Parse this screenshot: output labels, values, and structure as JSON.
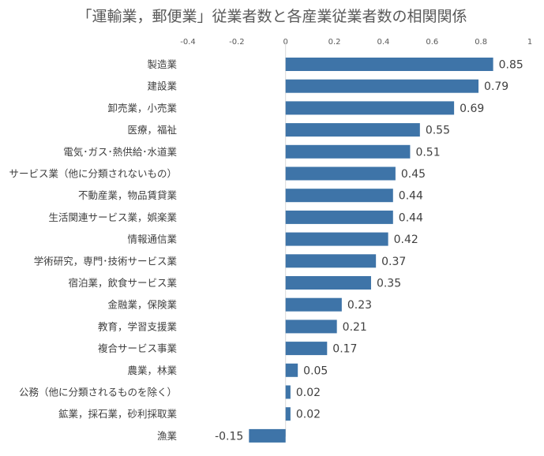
{
  "chart_data": {
    "type": "bar",
    "orientation": "horizontal",
    "title": "「運輸業，郵便業」従業者数と各産業従業者数の相関関係",
    "xlim": [
      -0.4,
      1
    ],
    "x_ticks": [
      "-0.4",
      "-0.2",
      "0",
      "0.2",
      "0.4",
      "0.6",
      "0.8",
      "1"
    ],
    "x_axis_position": "top",
    "grid": false,
    "legend": "none",
    "bar_color": "#3e74a8",
    "categories": [
      "製造業",
      "建設業",
      "卸売業，小売業",
      "医療，福祉",
      "電気･ガス･熱供給･水道業",
      "サービス業（他に分類されないもの）",
      "不動産業，物品賃貸業",
      "生活関連サービス業，娯楽業",
      "情報通信業",
      "学術研究，専門･技術サービス業",
      "宿泊業，飲食サービス業",
      "金融業，保険業",
      "教育，学習支援業",
      "複合サービス事業",
      "農業，林業",
      "公務（他に分類されるものを除く）",
      "鉱業，採石業，砂利採取業",
      "漁業"
    ],
    "values": [
      0.85,
      0.79,
      0.69,
      0.55,
      0.51,
      0.45,
      0.44,
      0.44,
      0.42,
      0.37,
      0.35,
      0.23,
      0.21,
      0.17,
      0.05,
      0.02,
      0.02,
      -0.15
    ],
    "value_labels": [
      "0.85",
      "0.79",
      "0.69",
      "0.55",
      "0.51",
      "0.45",
      "0.44",
      "0.44",
      "0.42",
      "0.37",
      "0.35",
      "0.23",
      "0.21",
      "0.17",
      "0.05",
      "0.02",
      "0.02",
      "-0.15"
    ]
  }
}
